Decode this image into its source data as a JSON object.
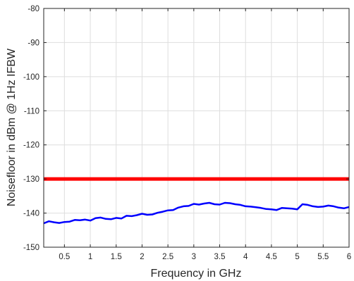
{
  "chart_data": {
    "type": "line",
    "title": "",
    "xlabel": "Frequency in GHz",
    "ylabel": "Noisefloor in dBm @ 1Hz IFBW",
    "xlim": [
      0.1,
      6
    ],
    "ylim": [
      -150,
      -80
    ],
    "xticks": [
      0.5,
      1,
      1.5,
      2,
      2.5,
      3,
      3.5,
      4,
      4.5,
      5,
      5.5,
      6
    ],
    "xtick_labels": [
      "0.5",
      "1",
      "1.5",
      "2",
      "2.5",
      "3",
      "3.5",
      "4",
      "4.5",
      "5",
      "5.5",
      "6"
    ],
    "yticks": [
      -150,
      -140,
      -130,
      -120,
      -110,
      -100,
      -90,
      -80
    ],
    "ytick_labels": [
      "-150",
      "-140",
      "-130",
      "-120",
      "-110",
      "-100",
      "-90",
      "-80"
    ],
    "grid": true,
    "series": [
      {
        "color": "#ff0000",
        "x": [
          0.1,
          6
        ],
        "y": [
          -130,
          -130
        ]
      },
      {
        "color": "#0000ff",
        "x": [
          0.1,
          0.2,
          0.3,
          0.4,
          0.5,
          0.6,
          0.7,
          0.8,
          0.9,
          1.0,
          1.1,
          1.2,
          1.3,
          1.4,
          1.5,
          1.6,
          1.7,
          1.8,
          1.9,
          2.0,
          2.1,
          2.2,
          2.3,
          2.4,
          2.5,
          2.6,
          2.7,
          2.8,
          2.9,
          3.0,
          3.1,
          3.2,
          3.3,
          3.4,
          3.5,
          3.6,
          3.7,
          3.8,
          3.9,
          4.0,
          4.1,
          4.2,
          4.3,
          4.4,
          4.5,
          4.6,
          4.7,
          4.8,
          4.9,
          5.0,
          5.1,
          5.2,
          5.3,
          5.4,
          5.5,
          5.6,
          5.7,
          5.8,
          5.9,
          6.0
        ],
        "y": [
          -143.0,
          -142.4,
          -142.7,
          -142.9,
          -142.6,
          -142.5,
          -142.0,
          -142.1,
          -141.9,
          -142.2,
          -141.5,
          -141.3,
          -141.7,
          -141.8,
          -141.4,
          -141.6,
          -140.8,
          -140.9,
          -140.6,
          -140.2,
          -140.5,
          -140.4,
          -139.9,
          -139.6,
          -139.2,
          -139.1,
          -138.4,
          -138.0,
          -137.9,
          -137.3,
          -137.5,
          -137.2,
          -137.0,
          -137.4,
          -137.5,
          -137.0,
          -137.1,
          -137.4,
          -137.6,
          -138.0,
          -138.1,
          -138.3,
          -138.5,
          -138.8,
          -138.9,
          -139.1,
          -138.5,
          -138.6,
          -138.7,
          -138.9,
          -137.4,
          -137.6,
          -138.0,
          -138.2,
          -138.1,
          -137.8,
          -138.0,
          -138.4,
          -138.6,
          -138.2
        ]
      }
    ]
  }
}
